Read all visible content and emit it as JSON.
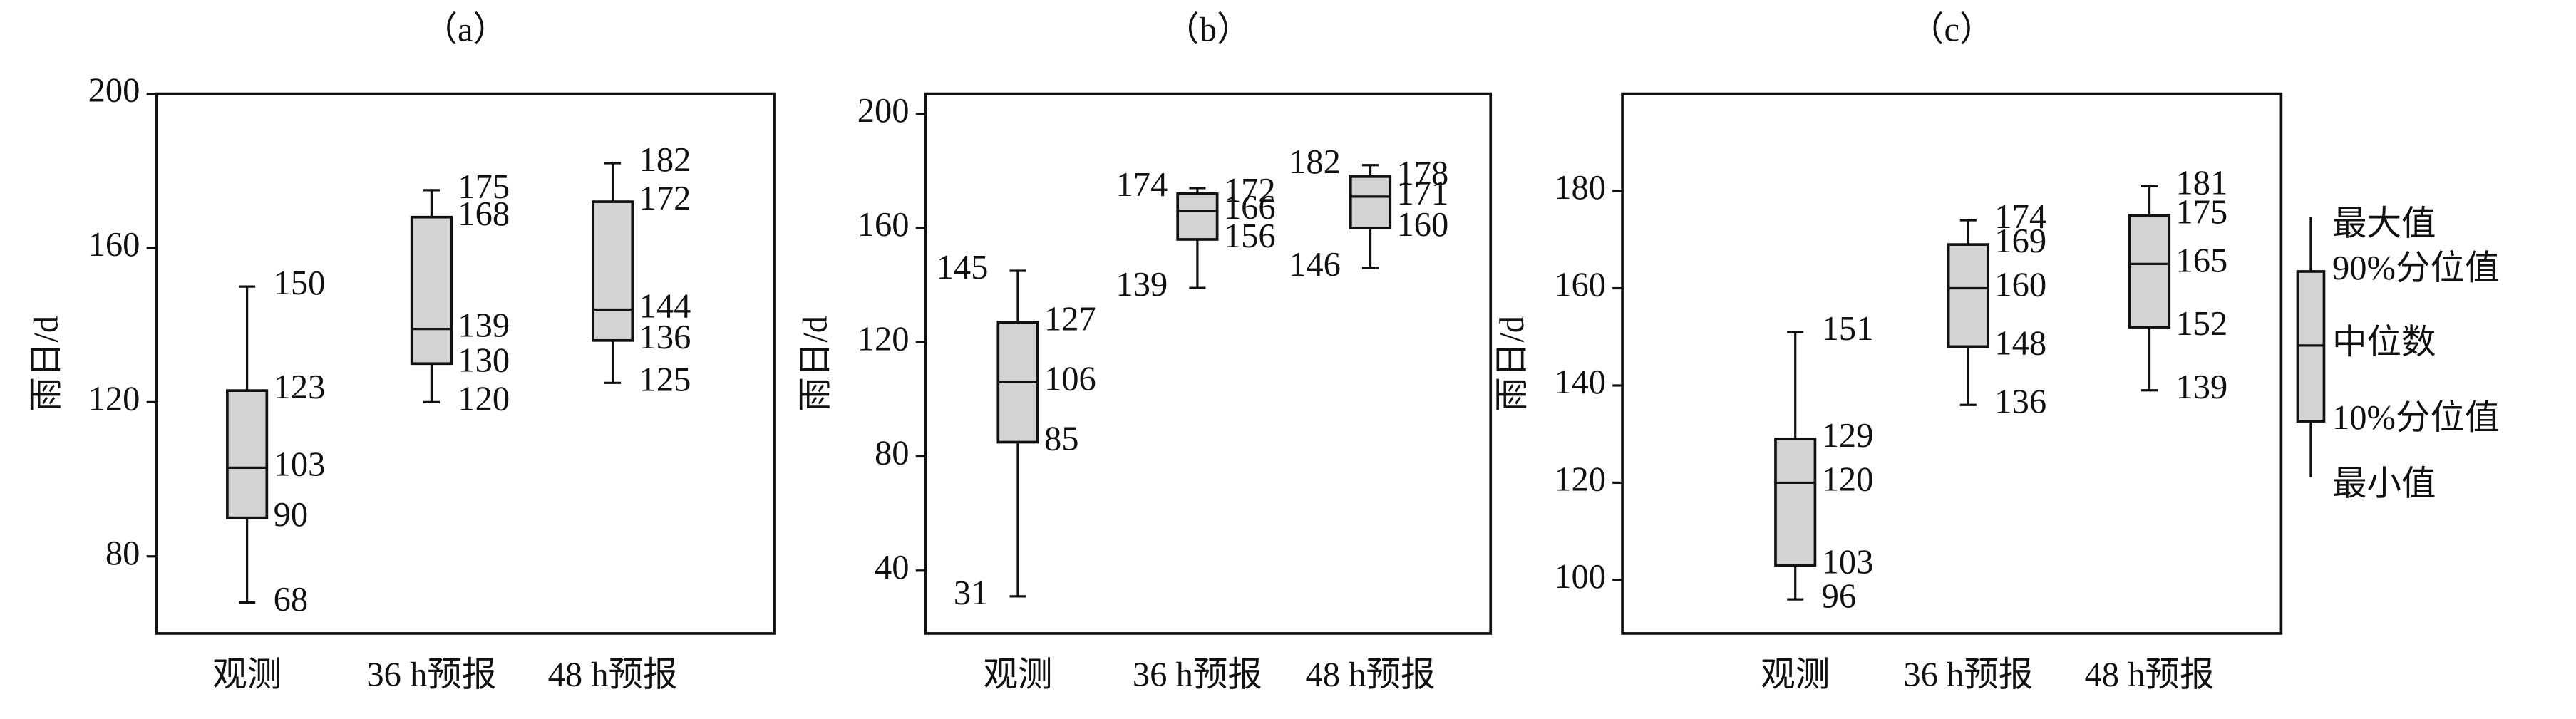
{
  "chart_data": [
    {
      "type": "box",
      "title": "（a）",
      "y_label": "雨日/d",
      "categories": [
        "观测",
        "36 h预报",
        "48 h预报"
      ],
      "max": [
        150,
        175,
        182
      ],
      "p90": [
        123,
        168,
        172
      ],
      "median": [
        103,
        139,
        144
      ],
      "p10": [
        90,
        130,
        136
      ],
      "min": [
        68,
        120,
        125
      ],
      "color": "#d3d3d3",
      "ylim": [
        60,
        200
      ],
      "yticks": [
        80,
        120,
        160,
        200
      ]
    },
    {
      "type": "box",
      "title": "（b）",
      "y_label": "雨日/d",
      "categories": [
        "观测",
        "36 h预报",
        "48 h预报"
      ],
      "max": [
        145,
        174,
        182
      ],
      "p90": [
        127,
        172,
        178
      ],
      "median": [
        106,
        166,
        171
      ],
      "p10": [
        85,
        156,
        160
      ],
      "min": [
        31,
        139,
        146
      ],
      "color": "#d3d3d3",
      "ylim": [
        18,
        207
      ],
      "yticks": [
        40,
        80,
        120,
        160,
        200
      ]
    },
    {
      "type": "box",
      "title": "（c）",
      "y_label": "雨日/d",
      "categories": [
        "观测",
        "36 h预报",
        "48 h预报"
      ],
      "max": [
        151,
        174,
        181
      ],
      "p90": [
        129,
        169,
        175
      ],
      "median": [
        120,
        160,
        165
      ],
      "p10": [
        103,
        148,
        152
      ],
      "min": [
        96,
        136,
        139
      ],
      "color": "#d3d3d3",
      "ylim": [
        89,
        200
      ],
      "yticks": [
        100,
        120,
        140,
        160,
        180
      ],
      "legend": [
        "最大值",
        "90%分位值",
        "中位数",
        "10%分位值",
        "最小值"
      ]
    }
  ]
}
